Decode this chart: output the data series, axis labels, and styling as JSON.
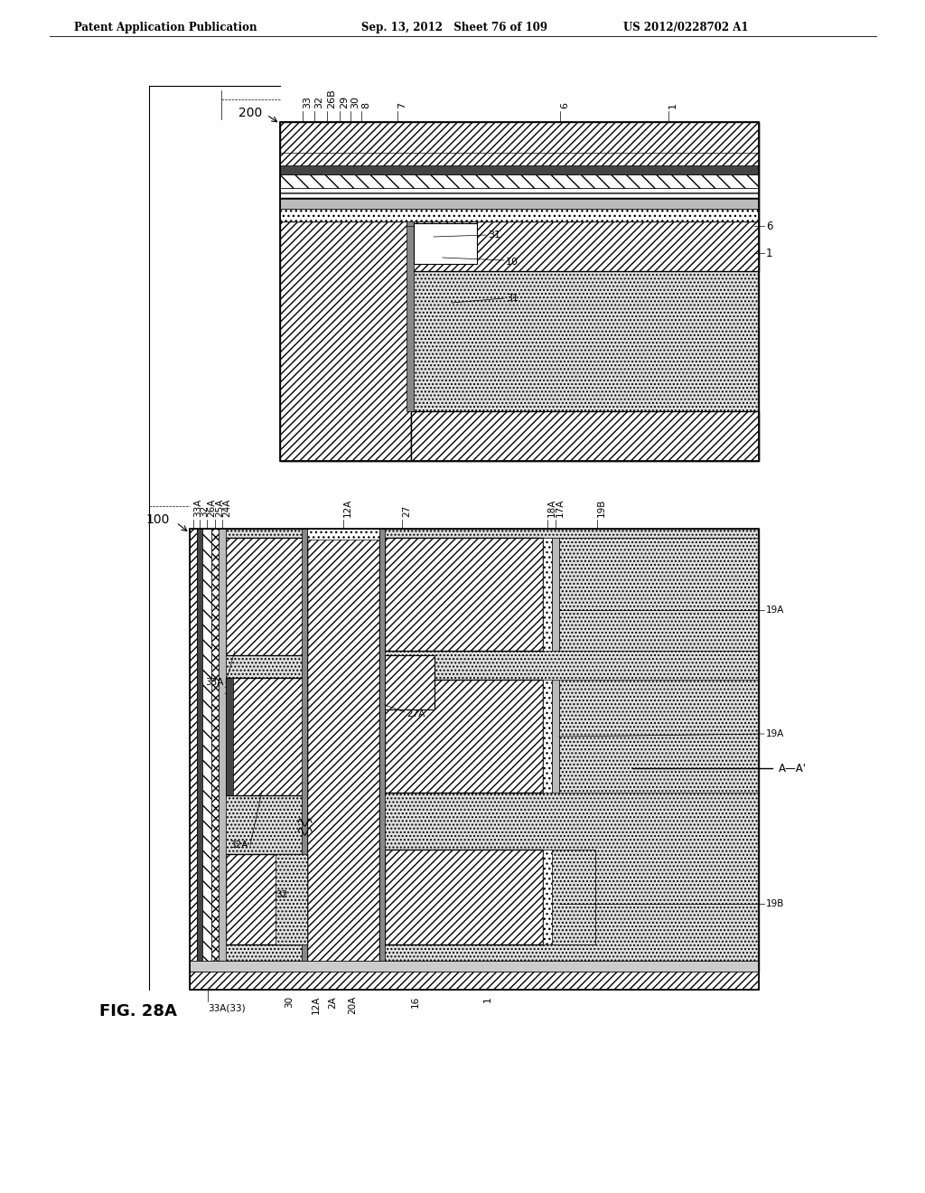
{
  "title_left": "Patent Application Publication",
  "title_center": "Sep. 13, 2012   Sheet 76 of 109",
  "title_right": "US 2012/0228702 A1",
  "fig_label": "FIG. 28A",
  "bg": "#ffffff"
}
